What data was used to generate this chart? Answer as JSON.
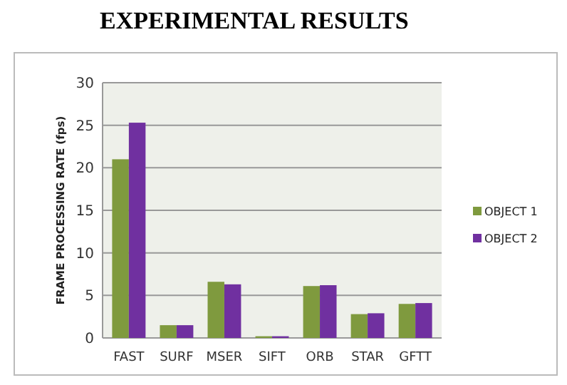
{
  "chart_data": {
    "type": "bar",
    "title": "EXPERIMENTAL RESULTS",
    "ylabel": "FRAME PROCESSING RATE (fps)",
    "categories": [
      "FAST",
      "SURF",
      "MSER",
      "SIFT",
      "ORB",
      "STAR",
      "GFTT"
    ],
    "series": [
      {
        "name": "OBJECT 1",
        "color": "#7f9a3e",
        "values": [
          21,
          1.5,
          6.6,
          0.2,
          6.1,
          2.8,
          4.0
        ]
      },
      {
        "name": "OBJECT 2",
        "color": "#7030a0",
        "values": [
          25.3,
          1.5,
          6.3,
          0.2,
          6.2,
          2.9,
          4.1
        ]
      }
    ],
    "ylim": [
      0,
      30
    ],
    "yticks": [
      0,
      5,
      10,
      15,
      20,
      25,
      30
    ],
    "grid": "y",
    "legend": "right"
  }
}
